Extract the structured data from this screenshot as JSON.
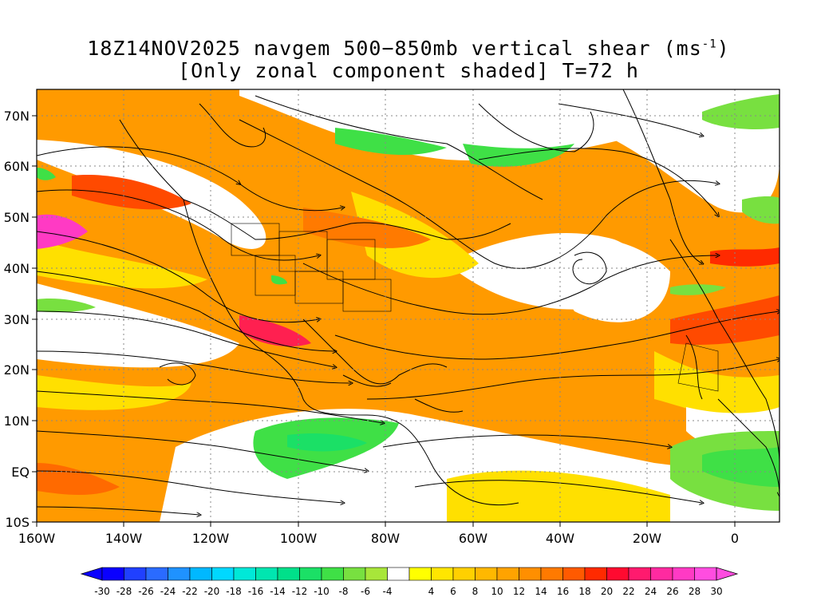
{
  "title": {
    "line1": "18Z14NOV2025 navgem 500−850mb vertical shear (ms",
    "line1_sup": "-1",
    "line1_end": ")",
    "line2": "[Only zonal component shaded] T=72 h"
  },
  "map": {
    "lon_labels": [
      "160W",
      "140W",
      "120W",
      "100W",
      "80W",
      "60W",
      "40W",
      "20W",
      "0"
    ],
    "lat_labels": [
      "70N",
      "60N",
      "50N",
      "40N",
      "30N",
      "20N",
      "10N",
      "EQ",
      "10S"
    ]
  },
  "colorbar": {
    "tick_labels": [
      "-30",
      "-28",
      "-26",
      "-24",
      "-22",
      "-20",
      "-18",
      "-16",
      "-14",
      "-12",
      "-10",
      "-8",
      "-6",
      "-4",
      "4",
      "6",
      "8",
      "10",
      "12",
      "14",
      "16",
      "18",
      "20",
      "22",
      "24",
      "26",
      "28",
      "30"
    ],
    "colors": [
      "#0a00ff",
      "#2040ff",
      "#2a6bff",
      "#1f92ff",
      "#00b8ff",
      "#00d8ff",
      "#00e8d8",
      "#00e6b0",
      "#00e08a",
      "#1be066",
      "#3fe046",
      "#78e040",
      "#a8e63a",
      "#ffffff",
      "#ffff00",
      "#ffe600",
      "#ffd000",
      "#ffb800",
      "#ffa300",
      "#ff8f00",
      "#ff7a00",
      "#ff5a00",
      "#ff2a00",
      "#ff0a30",
      "#ff1a6e",
      "#ff2aa0",
      "#ff3ac4",
      "#ff4de0"
    ]
  }
}
